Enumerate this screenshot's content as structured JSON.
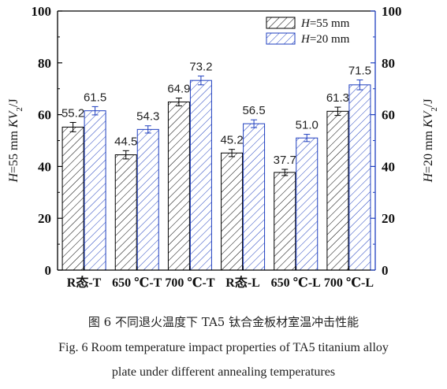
{
  "chart_data": {
    "type": "bar",
    "categories": [
      "R态-T",
      "650 ℃-T",
      "700 ℃-T",
      "R态-L",
      "650 ℃-L",
      "700 ℃-L"
    ],
    "series": [
      {
        "name": "H=55 mm",
        "values": [
          55.2,
          44.5,
          64.9,
          45.2,
          37.7,
          61.3
        ],
        "errors": [
          1.8,
          1.6,
          1.5,
          1.4,
          1.2,
          1.6
        ],
        "pattern": "diagonal-black",
        "color": "#000000"
      },
      {
        "name": "H=20 mm",
        "values": [
          61.5,
          54.3,
          73.2,
          56.5,
          51.0,
          71.5
        ],
        "errors": [
          1.6,
          1.4,
          1.7,
          1.5,
          1.4,
          1.9
        ],
        "pattern": "diagonal-blue",
        "color": "#1f3fbf"
      }
    ],
    "data_labels": [
      "55.2",
      "44.5",
      "64.9",
      "45.2",
      "37.7",
      "61.3",
      "61.5",
      "54.3",
      "73.2",
      "56.5",
      "51.0",
      "71.5"
    ],
    "ylabel_left": "H=55 mm KV2/J",
    "ylabel_right": "H=20 mm KV2/J",
    "ylim": [
      0,
      100
    ],
    "yticks": [
      0,
      20,
      40,
      60,
      80,
      100
    ],
    "legend": "top-right",
    "grid": false,
    "right_axis_color": "#1f3fbf"
  },
  "caption": {
    "cn": "图 6   不同退火温度下 TA5 钛合金板材室温冲击性能",
    "en_line1": "Fig. 6   Room temperature impact properties of TA5 titanium alloy",
    "en_line2": "plate under different annealing temperatures"
  }
}
